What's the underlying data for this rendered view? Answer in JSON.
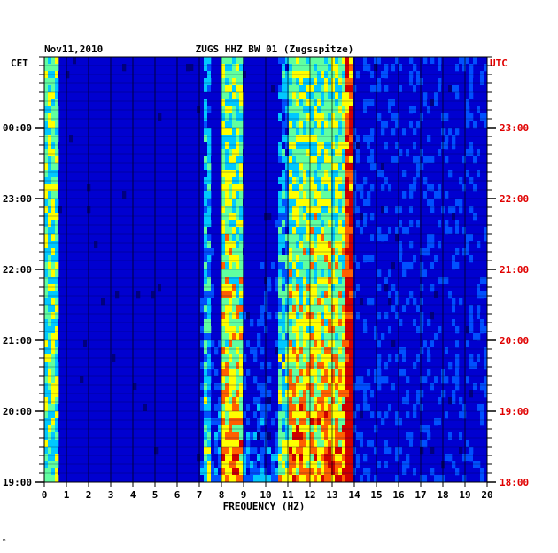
{
  "chart_data": {
    "type": "heatmap",
    "date": "Nov11,2010",
    "title": "ZUGS HHZ BW 01 (Zugsspitze)",
    "xlabel": "FREQUENCY (HZ)",
    "xlim": [
      0,
      20
    ],
    "x_ticks": [
      "0",
      "1",
      "2",
      "3",
      "4",
      "5",
      "6",
      "7",
      "8",
      "9",
      "10",
      "11",
      "12",
      "13",
      "14",
      "15",
      "16",
      "17",
      "18",
      "19",
      "20"
    ],
    "left_axis_label": "CET",
    "left_ticks": [
      "00:00",
      "23:00",
      "22:00",
      "21:00",
      "20:00",
      "19:00"
    ],
    "right_axis_label": "UTC",
    "right_ticks": [
      "23:00",
      "22:00",
      "21:00",
      "20:00",
      "19:00",
      "18:00"
    ],
    "colorscale": [
      "#00007f",
      "#0000d0",
      "#0050ff",
      "#00c8ff",
      "#60ffa0",
      "#ffff00",
      "#ff6000",
      "#d00000"
    ],
    "right_axis_color": "#e00000",
    "energy_bands_hz": [
      {
        "from": 0.0,
        "to": 0.6,
        "level": "high"
      },
      {
        "from": 7.2,
        "to": 7.6,
        "level": "medium"
      },
      {
        "from": 8.0,
        "to": 9.0,
        "level": "high"
      },
      {
        "from": 10.6,
        "to": 11.0,
        "level": "medium"
      },
      {
        "from": 11.0,
        "to": 14.0,
        "level": "high"
      },
      {
        "from": 13.6,
        "to": 14.0,
        "level": "very high"
      },
      {
        "from": 14.0,
        "to": 20.0,
        "level": "low"
      }
    ],
    "footer_mark": "ᵐ"
  }
}
